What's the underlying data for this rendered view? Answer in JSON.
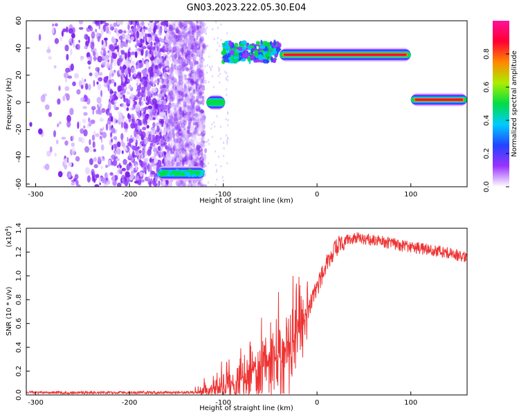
{
  "title": "GN03.2023.222.05.30.E04",
  "chart_data": [
    {
      "type": "heatmap",
      "xlabel": "Height of straight line (km)",
      "ylabel": "Frequency (Hz)",
      "xlim": [
        -310,
        160
      ],
      "ylim": [
        -62,
        60
      ],
      "xticks": [
        -300,
        -200,
        -100,
        0,
        100
      ],
      "yticks": [
        -60,
        -40,
        -20,
        0,
        20,
        40,
        60
      ],
      "colorbar": {
        "label": "Normalized spectral amplitude",
        "range": [
          0.0,
          1.0
        ],
        "ticks": [
          "0.0",
          "0.2",
          "0.4",
          "0.6",
          "0.8"
        ],
        "colors": [
          "#ffffff",
          "#9a33ff",
          "#2244ff",
          "#00ccff",
          "#00dd44",
          "#aaee00",
          "#ff8800",
          "#ff0033",
          "#ff1199"
        ]
      },
      "features": [
        {
          "region": "broadband noise",
          "x": [
            -310,
            -130
          ],
          "y": [
            -62,
            60
          ],
          "amplitude": 0.2
        },
        {
          "region": "band",
          "x": [
            -170,
            -120
          ],
          "y": -52,
          "amplitude": 0.5
        },
        {
          "region": "band",
          "x": [
            -118,
            -98
          ],
          "y": 0,
          "amplitude": 0.5
        },
        {
          "region": "band",
          "x": [
            -100,
            -40
          ],
          "y": 37,
          "amplitude": 0.6
        },
        {
          "region": "band",
          "x": [
            -40,
            100
          ],
          "y": 35,
          "amplitude": 0.9
        },
        {
          "region": "band",
          "x": [
            100,
            160
          ],
          "y": 2,
          "amplitude": 0.95
        }
      ]
    },
    {
      "type": "line",
      "xlabel": "Height of straight line (km)",
      "ylabel": "SNR (10 * v/v)",
      "yscale_label": "(x10",
      "yscale_exp": "4",
      "yscale_close": ")",
      "xlim": [
        -310,
        160
      ],
      "ylim": [
        0.0,
        1.4
      ],
      "xticks": [
        -300,
        -200,
        -100,
        0,
        100
      ],
      "yticks": [
        "0.0",
        "0.2",
        "0.4",
        "0.6",
        "0.8",
        "1.0",
        "1.2",
        "1.4"
      ],
      "series": [
        {
          "color": "#ee3333",
          "x": [
            -310,
            -250,
            -200,
            -150,
            -130,
            -110,
            -90,
            -70,
            -50,
            -35,
            -25,
            -15,
            -5,
            5,
            15,
            25,
            40,
            60,
            80,
            100,
            120,
            140,
            160
          ],
          "y": [
            0.02,
            0.02,
            0.02,
            0.02,
            0.02,
            0.05,
            0.1,
            0.18,
            0.28,
            0.38,
            0.45,
            0.6,
            0.8,
            1.0,
            1.18,
            1.28,
            1.32,
            1.3,
            1.27,
            1.24,
            1.22,
            1.19,
            1.16
          ]
        }
      ]
    }
  ]
}
